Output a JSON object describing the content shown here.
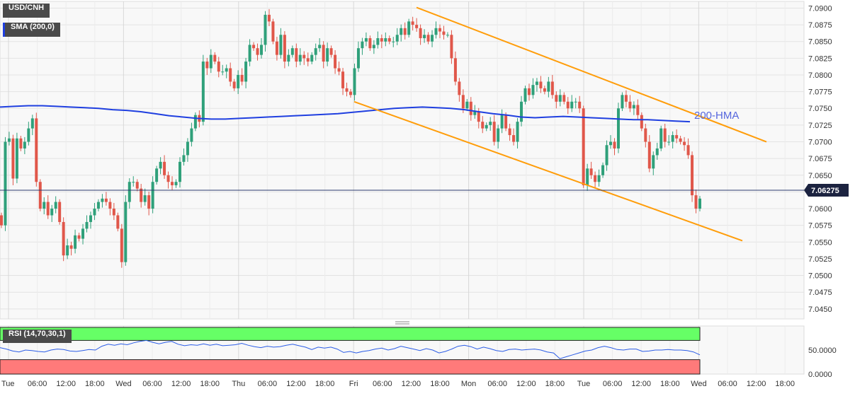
{
  "header": {
    "symbol": "USD/CNH",
    "indicator": "SMA (200,0)",
    "rsi_label": "RSI (14,70,30,1)"
  },
  "annotations": {
    "hma_label": "200-HMA",
    "last_price": "7.06275"
  },
  "colors": {
    "bull": "#2fa07a",
    "bear": "#e0574a",
    "channel": "#ff9d0a",
    "hma": "#1f3fe0",
    "rsi_line": "#2b5ce6",
    "rsi_over": "#66ff66",
    "rsi_under": "#ff7a7a"
  },
  "chart_data": {
    "type": "candlestick",
    "x_tick_labels": [
      "Tue",
      "06:00",
      "12:00",
      "18:00",
      "Wed",
      "06:00",
      "12:00",
      "18:00",
      "Thu",
      "06:00",
      "12:00",
      "18:00",
      "Fri",
      "06:00",
      "12:00",
      "18:00",
      "Mon",
      "06:00",
      "12:00",
      "18:00",
      "Tue",
      "06:00",
      "12:00",
      "18:00",
      "Wed",
      "06:00",
      "12:00",
      "18:00"
    ],
    "y_ticks": [
      "7.0900",
      "7.0875",
      "7.0850",
      "7.0825",
      "7.0800",
      "7.0775",
      "7.0750",
      "7.0725",
      "7.0700",
      "7.0675",
      "7.0650",
      "7.0625",
      "7.0600",
      "7.0575",
      "7.0550",
      "7.0525",
      "7.0500",
      "7.0475",
      "7.0450"
    ],
    "ylim": [
      7.0435,
      7.091
    ],
    "last_price": 7.06275,
    "hourly_closes": [
      7.0575,
      7.07,
      7.0705,
      7.0645,
      7.0705,
      7.069,
      7.07,
      7.072,
      7.0735,
      7.064,
      7.06,
      7.061,
      7.059,
      7.06,
      7.061,
      7.058,
      7.053,
      7.0545,
      7.054,
      7.056,
      7.0555,
      7.057,
      7.058,
      7.059,
      7.06,
      7.061,
      7.0615,
      7.061,
      7.06,
      7.059,
      7.057,
      7.052,
      7.061,
      7.064,
      7.064,
      7.063,
      7.061,
      7.062,
      7.06,
      7.064,
      7.066,
      7.067,
      7.065,
      7.064,
      7.0635,
      7.064,
      7.067,
      7.068,
      7.07,
      7.072,
      7.074,
      7.073,
      7.082,
      7.081,
      7.083,
      7.082,
      7.0805,
      7.0805,
      7.081,
      7.079,
      7.078,
      7.08,
      7.079,
      7.082,
      7.0845,
      7.084,
      7.083,
      7.0845,
      7.089,
      7.088,
      7.085,
      7.083,
      7.086,
      7.082,
      7.083,
      7.084,
      7.082,
      7.083,
      7.0825,
      7.082,
      7.083,
      7.084,
      7.0845,
      7.082,
      7.084,
      7.083,
      7.081,
      7.0805,
      7.078,
      7.0775,
      7.077,
      7.081,
      7.084,
      7.085,
      7.0855,
      7.084,
      7.0845,
      7.0855,
      7.085,
      7.0855,
      7.085,
      7.085,
      7.086,
      7.087,
      7.086,
      7.088,
      7.0875,
      7.087,
      7.0855,
      7.086,
      7.085,
      7.086,
      7.087,
      7.0865,
      7.086,
      7.086,
      7.0825,
      7.079,
      7.077,
      7.075,
      7.076,
      7.074,
      7.0745,
      7.073,
      7.072,
      7.0725,
      7.073,
      7.07,
      7.072,
      7.074,
      7.072,
      7.071,
      7.07,
      7.073,
      7.076,
      7.078,
      7.077,
      7.0785,
      7.079,
      7.078,
      7.0775,
      7.079,
      7.077,
      7.076,
      7.077,
      7.076,
      7.075,
      7.076,
      7.076,
      7.075,
      7.0635,
      7.066,
      7.065,
      7.064,
      7.065,
      7.0665,
      7.0695,
      7.07,
      7.069,
      7.075,
      7.077,
      7.076,
      7.075,
      7.0755,
      7.074,
      7.072,
      7.07,
      7.066,
      7.068,
      7.069,
      7.072,
      7.07,
      7.07,
      7.071,
      7.0705,
      7.07,
      7.0695,
      7.068,
      7.062,
      7.06,
      7.0615
    ],
    "hma_200": [
      7.0752,
      7.0753,
      7.0754,
      7.0754,
      7.0753,
      7.0752,
      7.0751,
      7.075,
      7.0748,
      7.0747,
      7.0745,
      7.0742,
      7.0739,
      7.0737,
      7.0735,
      7.0734,
      7.0734,
      7.0735,
      7.0736,
      7.0737,
      7.0738,
      7.0739,
      7.074,
      7.0741,
      7.0742,
      7.0744,
      7.0746,
      7.0748,
      7.075,
      7.0751,
      7.0752,
      7.0751,
      7.075,
      7.0748,
      7.0745,
      7.0742,
      7.074,
      7.0737,
      7.0736,
      7.0737,
      7.0738,
      7.0737,
      7.0736,
      7.0735,
      7.0734,
      7.0733,
      7.0733,
      7.0732,
      7.0731,
      7.073
    ],
    "channel": {
      "upper": [
        {
          "x": 0.0,
          "y": 7.0901
        },
        {
          "x": 1.0,
          "y": 7.07
        }
      ],
      "lower": [
        {
          "x": 0.0,
          "y": 7.076
        },
        {
          "x": 1.0,
          "y": 7.0552
        }
      ]
    },
    "rsi": {
      "levels": [
        70,
        30
      ],
      "y_ticks": [
        "50.0000",
        "0.0000"
      ],
      "values": [
        55,
        52,
        48,
        46,
        50,
        49,
        47,
        46,
        50,
        52,
        51,
        48,
        47,
        49,
        51,
        50,
        58,
        62,
        60,
        63,
        61,
        65,
        68,
        70,
        66,
        63,
        66,
        68,
        62,
        59,
        61,
        60,
        63,
        60,
        62,
        59,
        60,
        61,
        64,
        60,
        57,
        55,
        58,
        56,
        57,
        60,
        62,
        59,
        56,
        51,
        56,
        54,
        56,
        52,
        45,
        47,
        44,
        47,
        49,
        52,
        54,
        50,
        53,
        58,
        55,
        52,
        49,
        53,
        50,
        44,
        47,
        52,
        58,
        60,
        57,
        52,
        56,
        53,
        49,
        47,
        51,
        52,
        50,
        51,
        52,
        50,
        46,
        44,
        32,
        36,
        40,
        44,
        48,
        50,
        55,
        58,
        55,
        51,
        50,
        52,
        52,
        47,
        48,
        50,
        50,
        51,
        50,
        50,
        49,
        46,
        40
      ]
    }
  }
}
